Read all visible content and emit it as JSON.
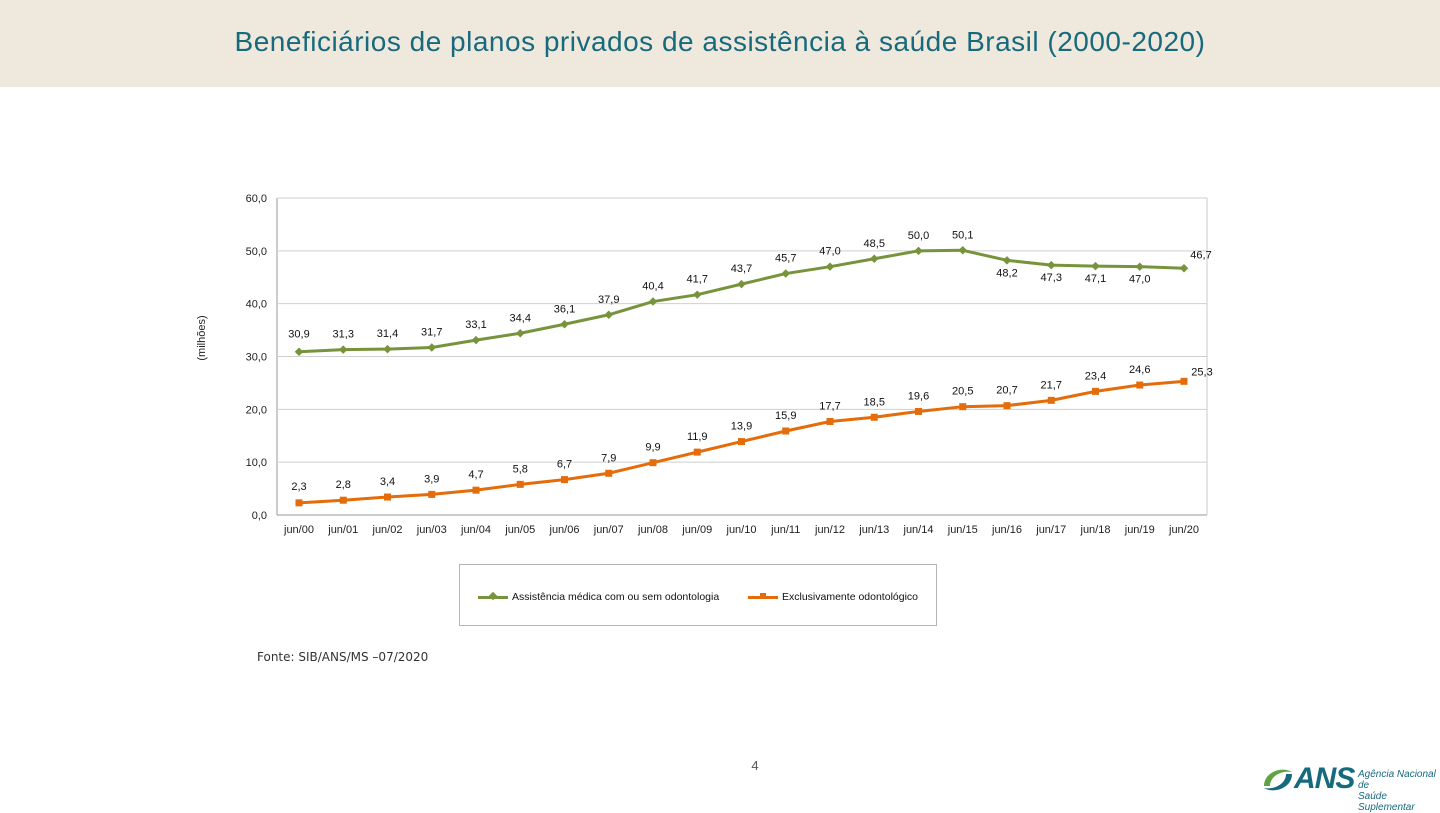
{
  "header": {
    "title": "Beneficiários de planos privados de assistência à saúde Brasil (2000-2020)"
  },
  "source": "Fonte: SIB/ANS/MS –07/2020",
  "page_number": "4",
  "logo": {
    "brand": "ANS",
    "subtitle": "Agência Nacional de\nSaúde Suplementar"
  },
  "chart_data": {
    "type": "line",
    "title": "",
    "ylabel": "(milhões)",
    "xlabel": "",
    "ylim": [
      0,
      60
    ],
    "yticks": [
      "0,0",
      "10,0",
      "20,0",
      "30,0",
      "40,0",
      "50,0",
      "60,0"
    ],
    "grid": true,
    "legend": "bottom",
    "categories": [
      "jun/00",
      "jun/01",
      "jun/02",
      "jun/03",
      "jun/04",
      "jun/05",
      "jun/06",
      "jun/07",
      "jun/08",
      "jun/09",
      "jun/10",
      "jun/11",
      "jun/12",
      "jun/13",
      "jun/14",
      "jun/15",
      "jun/16",
      "jun/17",
      "jun/18",
      "jun/19",
      "jun/20"
    ],
    "series": [
      {
        "name": "Assistência médica com ou sem odontologia",
        "color": "#77933c",
        "marker": "diamond",
        "values": [
          30.9,
          31.3,
          31.4,
          31.7,
          33.1,
          34.4,
          36.1,
          37.9,
          40.4,
          41.7,
          43.7,
          45.7,
          47.0,
          48.5,
          50.0,
          50.1,
          48.2,
          47.3,
          47.1,
          47.0,
          46.7
        ],
        "labels": [
          "30,9",
          "31,3",
          "31,4",
          "31,7",
          "33,1",
          "34,4",
          "36,1",
          "37,9",
          "40,4",
          "41,7",
          "43,7",
          "45,7",
          "47,0",
          "48,5",
          "50,0",
          "50,1",
          "48,2",
          "47,3",
          "47,1",
          "47,0",
          "46,7"
        ]
      },
      {
        "name": "Exclusivamente odontológico",
        "color": "#e46c0a",
        "marker": "square",
        "values": [
          2.3,
          2.8,
          3.4,
          3.9,
          4.7,
          5.8,
          6.7,
          7.9,
          9.9,
          11.9,
          13.9,
          15.9,
          17.7,
          18.5,
          19.6,
          20.5,
          20.7,
          21.7,
          23.4,
          24.6,
          25.3
        ],
        "labels": [
          "2,3",
          "2,8",
          "3,4",
          "3,9",
          "4,7",
          "5,8",
          "6,7",
          "7,9",
          "9,9",
          "11,9",
          "13,9",
          "15,9",
          "17,7",
          "18,5",
          "19,6",
          "20,5",
          "20,7",
          "21,7",
          "23,4",
          "24,6",
          "25,3"
        ]
      }
    ]
  }
}
